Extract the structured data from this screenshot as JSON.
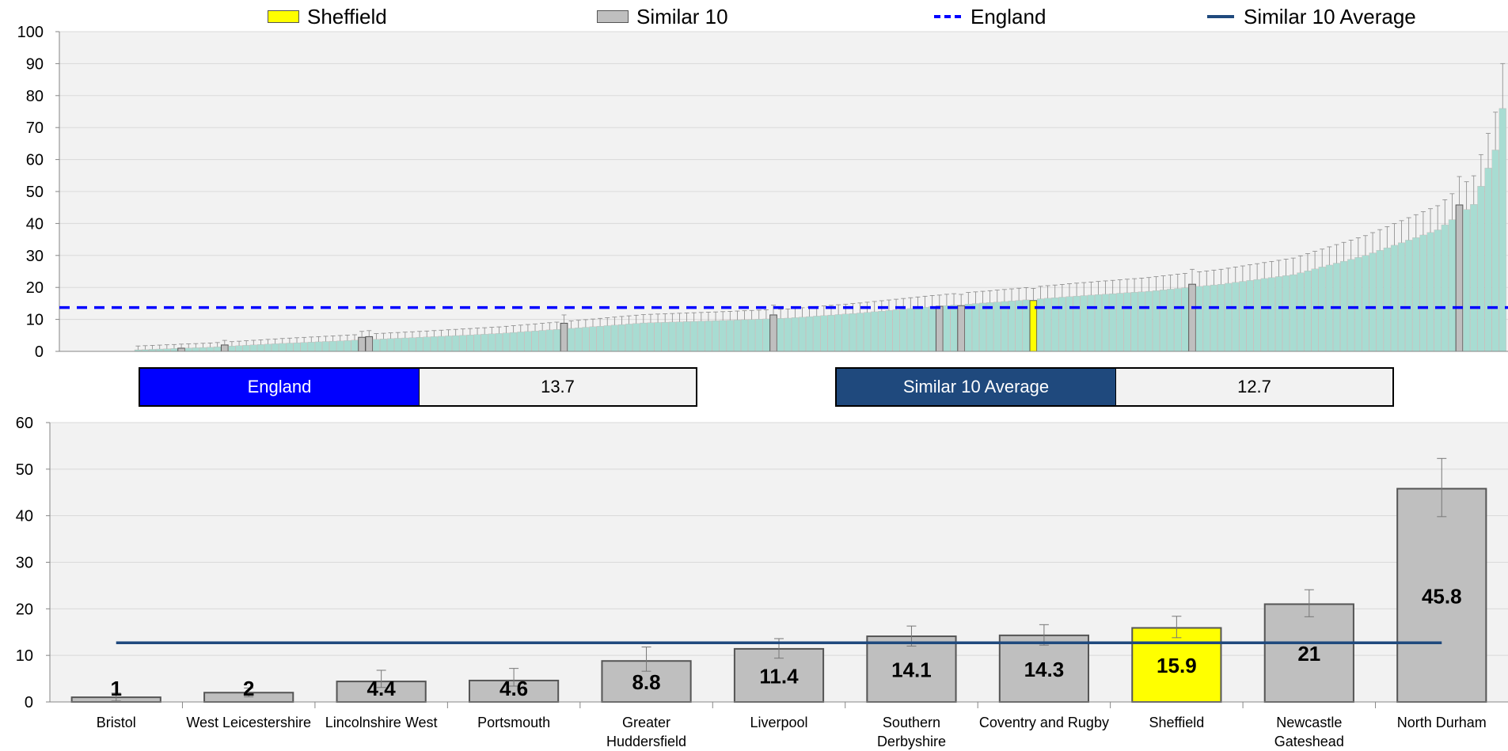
{
  "legend": {
    "items": [
      {
        "label": "Sheffield",
        "color": "#ffff00",
        "kind": "box"
      },
      {
        "label": "Similar 10",
        "color": "#bfbfbf",
        "kind": "box"
      },
      {
        "label": "England",
        "color": "#0000ff",
        "kind": "dashed-line"
      },
      {
        "label": "Similar 10 Average",
        "color": "#1f497d",
        "kind": "line"
      }
    ]
  },
  "stats": {
    "england": {
      "label": "England",
      "value": "13.7",
      "color": "#0000ff"
    },
    "similar_avg": {
      "label": "Similar 10 Average",
      "value": "12.7",
      "color": "#1f497d"
    }
  },
  "colors": {
    "england_bars": "#a8dcd2",
    "similar": "#bfbfbf",
    "highlight": "#ffff00",
    "england_line": "#0000ff",
    "similar_line": "#1f497d",
    "plot_bg": "#f2f2f2"
  },
  "chart_data": [
    {
      "type": "bar",
      "title": "",
      "xlabel": "",
      "ylabel": "",
      "ylim": [
        0,
        100
      ],
      "yticks": [
        0,
        10,
        20,
        30,
        40,
        50,
        60,
        70,
        80,
        90,
        100
      ],
      "grid": true,
      "legend_position": "top",
      "reference_lines": [
        {
          "name": "England",
          "value": 13.7,
          "style": "dashed"
        }
      ],
      "sorted_ascending": true,
      "n_bars": 190,
      "distribution_anchors": [
        [
          0,
          0.5
        ],
        [
          10,
          1.3
        ],
        [
          20,
          2.5
        ],
        [
          30,
          3.5
        ],
        [
          40,
          4.5
        ],
        [
          50,
          5.6
        ],
        [
          60,
          7.2
        ],
        [
          70,
          8.9
        ],
        [
          80,
          9.6
        ],
        [
          90,
          10.4
        ],
        [
          100,
          12.0
        ],
        [
          110,
          14.0
        ],
        [
          120,
          15.6
        ],
        [
          130,
          17.3
        ],
        [
          140,
          18.8
        ],
        [
          150,
          21.0
        ],
        [
          160,
          24.0
        ],
        [
          170,
          30.0
        ],
        [
          180,
          38.0
        ],
        [
          185,
          46.0
        ],
        [
          188,
          63.0
        ],
        [
          189,
          76.0
        ]
      ],
      "highlighted": [
        {
          "name": "Bristol",
          "index": 6,
          "value": 1,
          "group": "Similar 10"
        },
        {
          "name": "West Leicestershire",
          "index": 12,
          "value": 2,
          "group": "Similar 10"
        },
        {
          "name": "Lincolnshire West",
          "index": 31,
          "value": 4.4,
          "group": "Similar 10"
        },
        {
          "name": "Portsmouth",
          "index": 32,
          "value": 4.6,
          "group": "Similar 10"
        },
        {
          "name": "Greater Huddersfield",
          "index": 59,
          "value": 8.8,
          "group": "Similar 10"
        },
        {
          "name": "Liverpool",
          "index": 88,
          "value": 11.4,
          "group": "Similar 10"
        },
        {
          "name": "Southern Derbyshire",
          "index": 111,
          "value": 14.1,
          "group": "Similar 10"
        },
        {
          "name": "Coventry and Rugby",
          "index": 114,
          "value": 14.3,
          "group": "Similar 10"
        },
        {
          "name": "Sheffield",
          "index": 124,
          "value": 15.9,
          "group": "Sheffield"
        },
        {
          "name": "Newcastle Gateshead",
          "index": 146,
          "value": 21,
          "group": "Similar 10"
        },
        {
          "name": "North Durham",
          "index": 183,
          "value": 45.8,
          "group": "Similar 10"
        }
      ]
    },
    {
      "type": "bar",
      "title": "",
      "xlabel": "",
      "ylabel": "",
      "ylim": [
        0,
        60
      ],
      "yticks": [
        0,
        10,
        20,
        30,
        40,
        50,
        60
      ],
      "grid": true,
      "reference_lines": [
        {
          "name": "Similar 10 Average",
          "value": 12.7,
          "style": "solid"
        }
      ],
      "categories": [
        [
          "Bristol"
        ],
        [
          "West Leicestershire"
        ],
        [
          "Lincolnshire West"
        ],
        [
          "Portsmouth"
        ],
        [
          "Greater",
          "Huddersfield"
        ],
        [
          "Liverpool"
        ],
        [
          "Southern",
          "Derbyshire"
        ],
        [
          "Coventry and Rugby"
        ],
        [
          "Sheffield"
        ],
        [
          "Newcastle",
          "Gateshead"
        ],
        [
          "North Durham"
        ]
      ],
      "values": [
        1,
        2,
        4.4,
        4.6,
        8.8,
        11.4,
        14.1,
        14.3,
        15.9,
        21,
        45.8
      ],
      "value_labels": [
        "1",
        "2",
        "4.4",
        "4.6",
        "8.8",
        "11.4",
        "14.1",
        "14.3",
        "15.9",
        "21",
        "45.8"
      ],
      "error_low": [
        0.2,
        1.1,
        3.1,
        3.4,
        6.6,
        9.4,
        12.0,
        12.2,
        13.8,
        18.3,
        39.8
      ],
      "error_high": [
        1.9,
        3.0,
        6.8,
        7.2,
        11.8,
        13.6,
        16.3,
        16.6,
        18.4,
        24.1,
        52.3
      ],
      "highlight_index": 8
    }
  ]
}
